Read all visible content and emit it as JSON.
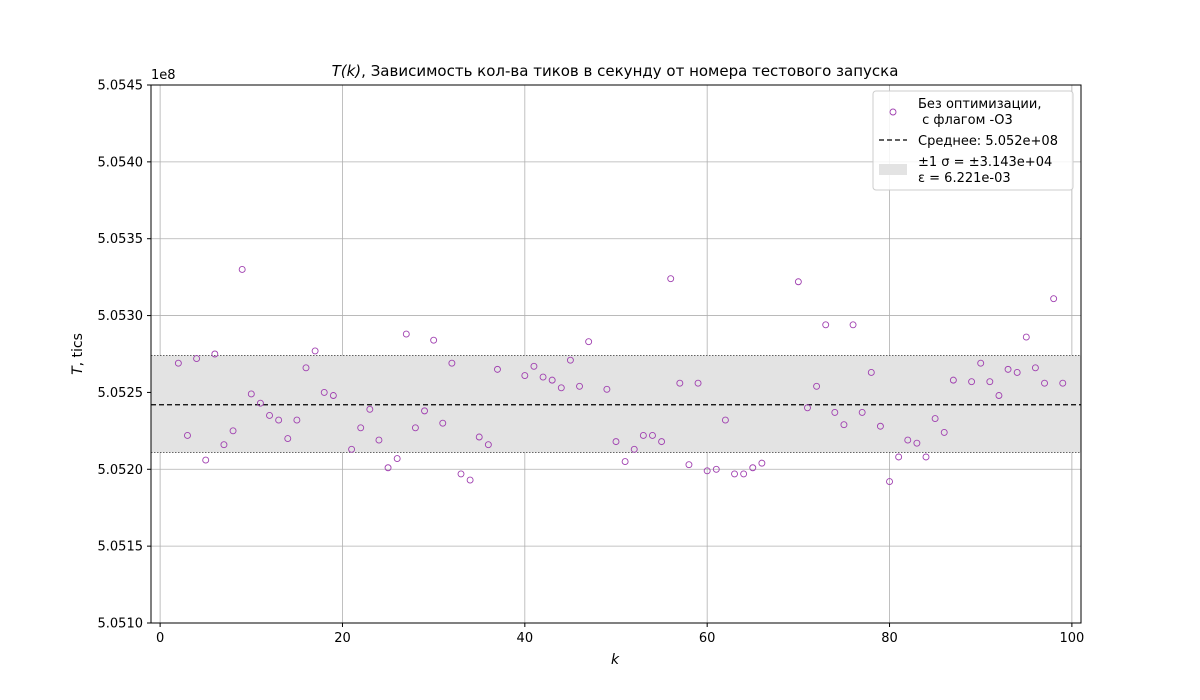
{
  "chart_data": {
    "type": "scatter",
    "title_prefix": "T(k)",
    "title_rest": ", Зависимость кол-ва тиков в секунду от номера тестового запуска",
    "xlabel": "k",
    "ylabel_italic": "T",
    "ylabel_rest": ", tics",
    "y_offset_label": "1e8",
    "xlim": [
      -1,
      101
    ],
    "ylim": [
      505100000,
      505450000
    ],
    "x_ticks": [
      0,
      20,
      40,
      60,
      80,
      100
    ],
    "x_tick_labels": [
      "0",
      "20",
      "40",
      "60",
      "80",
      "100"
    ],
    "y_ticks": [
      505100000,
      505150000,
      505200000,
      505250000,
      505300000,
      505350000,
      505400000,
      505450000
    ],
    "y_tick_labels": [
      "5.0510",
      "5.0515",
      "5.0520",
      "5.0525",
      "5.0530",
      "5.0535",
      "5.0540",
      "5.0545"
    ],
    "grid": true,
    "legend_position": "top-right",
    "series": [
      {
        "name": "Без оптимизации,\n с флагом -O3",
        "legend_line1": "Без оптимизации,",
        "legend_line2": " с флагом -O3",
        "color": "#a040b0",
        "marker": "hollow-circle",
        "x": [
          2,
          3,
          4,
          5,
          6,
          7,
          8,
          9,
          10,
          11,
          12,
          13,
          14,
          15,
          16,
          17,
          18,
          19,
          21,
          22,
          23,
          24,
          25,
          26,
          27,
          28,
          29,
          30,
          31,
          32,
          33,
          34,
          35,
          36,
          37,
          40,
          41,
          42,
          43,
          44,
          45,
          46,
          47,
          49,
          50,
          51,
          52,
          53,
          54,
          55,
          56,
          57,
          58,
          59,
          60,
          61,
          62,
          63,
          64,
          65,
          66,
          70,
          71,
          72,
          73,
          74,
          75,
          76,
          77,
          78,
          79,
          80,
          81,
          82,
          83,
          84,
          85,
          86,
          87,
          89,
          90,
          91,
          92,
          93,
          94,
          95,
          96,
          97,
          98,
          99
        ],
        "y": [
          505269000,
          505222000,
          505272000,
          505206000,
          505275000,
          505216000,
          505225000,
          505330000,
          505249000,
          505243000,
          505235000,
          505232000,
          505220000,
          505232000,
          505266000,
          505277000,
          505250000,
          505248000,
          505213000,
          505227000,
          505239000,
          505219000,
          505201000,
          505207000,
          505288000,
          505227000,
          505238000,
          505284000,
          505230000,
          505269000,
          505197000,
          505193000,
          505221000,
          505216000,
          505265000,
          505261000,
          505267000,
          505260000,
          505258000,
          505253000,
          505271000,
          505254000,
          505283000,
          505252000,
          505218000,
          505205000,
          505213000,
          505222000,
          505222000,
          505218000,
          505324000,
          505256000,
          505203000,
          505256000,
          505199000,
          505200000,
          505232000,
          505197000,
          505197000,
          505201000,
          505204000,
          505322000,
          505240000,
          505254000,
          505294000,
          505237000,
          505229000,
          505294000,
          505237000,
          505263000,
          505228000,
          505192000,
          505208000,
          505219000,
          505217000,
          505208000,
          505233000,
          505224000,
          505258000,
          505257000,
          505269000,
          505257000,
          505248000,
          505265000,
          505263000,
          505286000,
          505266000,
          505256000,
          505311000,
          505256000
        ]
      }
    ],
    "mean": {
      "value": 505242000,
      "label": "Среднее: 5.052e+08",
      "color": "#000000",
      "style": "dashed"
    },
    "band": {
      "low": 505211000,
      "high": 505274000,
      "label_line1": "±1 σ = ±3.143e+04",
      "label_line2": "ε = 6.221e-03",
      "color": "#e3e3e3"
    }
  }
}
